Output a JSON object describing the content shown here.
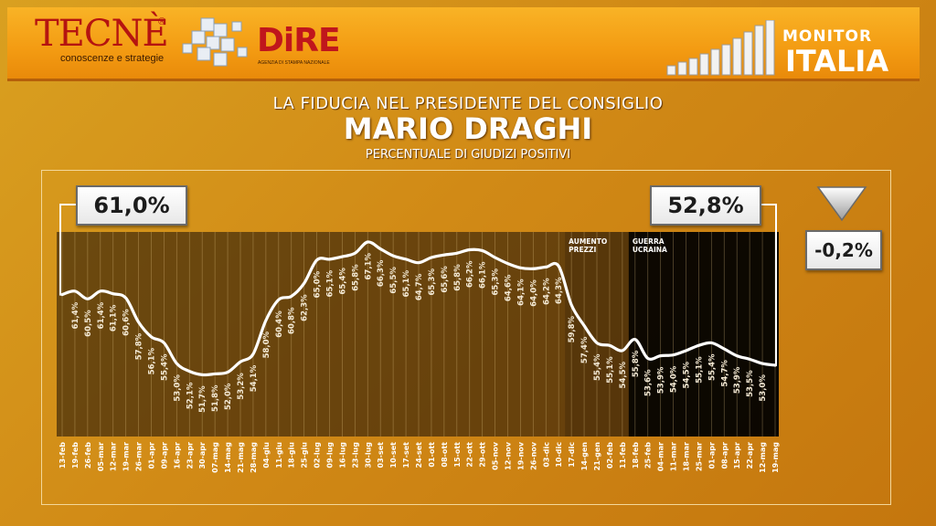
{
  "header": {
    "logo_tecne": "TECNÈ",
    "logo_tecne_registered": "®",
    "logo_tecne_tagline": "conoscenze e strategie",
    "logo_dire": "DiRE",
    "logo_dire_tagline": "AGENZIA DI STAMPA NAZIONALE",
    "brand_line1": "MONITOR",
    "brand_line2": "ITALIA"
  },
  "titles": {
    "line1": "LA FIDUCIA NEL PRESIDENTE DEL CONSIGLIO",
    "line2": "MARIO DRAGHI",
    "line3": "PERCENTUALE DI GIUDIZI POSITIVI"
  },
  "callouts": {
    "start": "61,0%",
    "end": "52,8%",
    "delta": "-0,2%"
  },
  "colors": {
    "background": "#d18a16",
    "line": "#ffffff",
    "plot_overlay": "#1e1408",
    "event_prices": "#3a2108",
    "event_war": "#000000"
  },
  "chart_data": {
    "type": "line",
    "title": "La fiducia nel Presidente del Consiglio Mario Draghi",
    "subtitle": "Percentuale di giudizi positivi",
    "xlabel": "",
    "ylabel": "%",
    "ylim": [
      51,
      68
    ],
    "grid": "vertical",
    "categories": [
      "13-feb",
      "19-feb",
      "26-feb",
      "05-mar",
      "12-mar",
      "19-mar",
      "26-mar",
      "01-apr",
      "09-apr",
      "16-apr",
      "23-apr",
      "30-apr",
      "07-mag",
      "14-mag",
      "21-mag",
      "28-mag",
      "04-giu",
      "11-giu",
      "18-giu",
      "25-giu",
      "02-lug",
      "09-lug",
      "16-lug",
      "23-lug",
      "30-lug",
      "03-set",
      "10-set",
      "17-set",
      "24-set",
      "01-ott",
      "08-ott",
      "15-ott",
      "22-ott",
      "29-ott",
      "05-nov",
      "12-nov",
      "19-nov",
      "26-nov",
      "03-dic",
      "10-dic",
      "17-dic",
      "14-gen",
      "21-gen",
      "02-feb",
      "11-feb",
      "18-feb",
      "25-feb",
      "04-mar",
      "11-mar",
      "18-mar",
      "25-mar",
      "01-apr",
      "08-apr",
      "15-apr",
      "22-apr",
      "12-mag",
      "19-mag"
    ],
    "values": [
      61.0,
      61.4,
      60.5,
      61.4,
      61.1,
      60.6,
      57.8,
      56.1,
      55.4,
      53.0,
      52.1,
      51.7,
      51.8,
      52.0,
      53.2,
      54.1,
      58.0,
      60.4,
      60.8,
      62.3,
      65.0,
      65.1,
      65.4,
      65.8,
      67.1,
      66.3,
      65.5,
      65.1,
      64.7,
      65.3,
      65.6,
      65.8,
      66.2,
      66.1,
      65.3,
      64.6,
      64.1,
      64.0,
      64.2,
      64.3,
      59.8,
      57.4,
      55.4,
      55.1,
      54.5,
      55.8,
      53.6,
      53.9,
      54.0,
      54.5,
      55.1,
      55.4,
      54.7,
      53.9,
      53.5,
      53.0,
      52.8
    ],
    "data_labels": [
      "",
      "61,4%",
      "60,5%",
      "61,4%",
      "61,1%",
      "60,6%",
      "57,8%",
      "56,1%",
      "55,4%",
      "53,0%",
      "52,1%",
      "51,7%",
      "51,8%",
      "52,0%",
      "53,2%",
      "54,1%",
      "58,0%",
      "60,4%",
      "60,8%",
      "62,3%",
      "65,0%",
      "65,1%",
      "65,4%",
      "65,8%",
      "67,1%",
      "66,3%",
      "65,5%",
      "65,1%",
      "64,7%",
      "65,3%",
      "65,6%",
      "65,8%",
      "66,2%",
      "66,1%",
      "65,3%",
      "64,6%",
      "64,1%",
      "64,0%",
      "64,2%",
      "64,3%",
      "59,8%",
      "57,4%",
      "55,4%",
      "55,1%",
      "54,5%",
      "55,8%",
      "53,6%",
      "53,9%",
      "54,0%",
      "54,5%",
      "55,1%",
      "55,4%",
      "54,7%",
      "53,9%",
      "53,5%",
      "53,0%",
      ""
    ],
    "events": [
      {
        "label_line1": "AUMENTO",
        "label_line2": "PREZZI",
        "start_index": 40,
        "end_index": 45
      },
      {
        "label_line1": "GUERRA",
        "label_line2": "UCRAINA",
        "start_index": 45,
        "end_index": 56
      }
    ]
  }
}
